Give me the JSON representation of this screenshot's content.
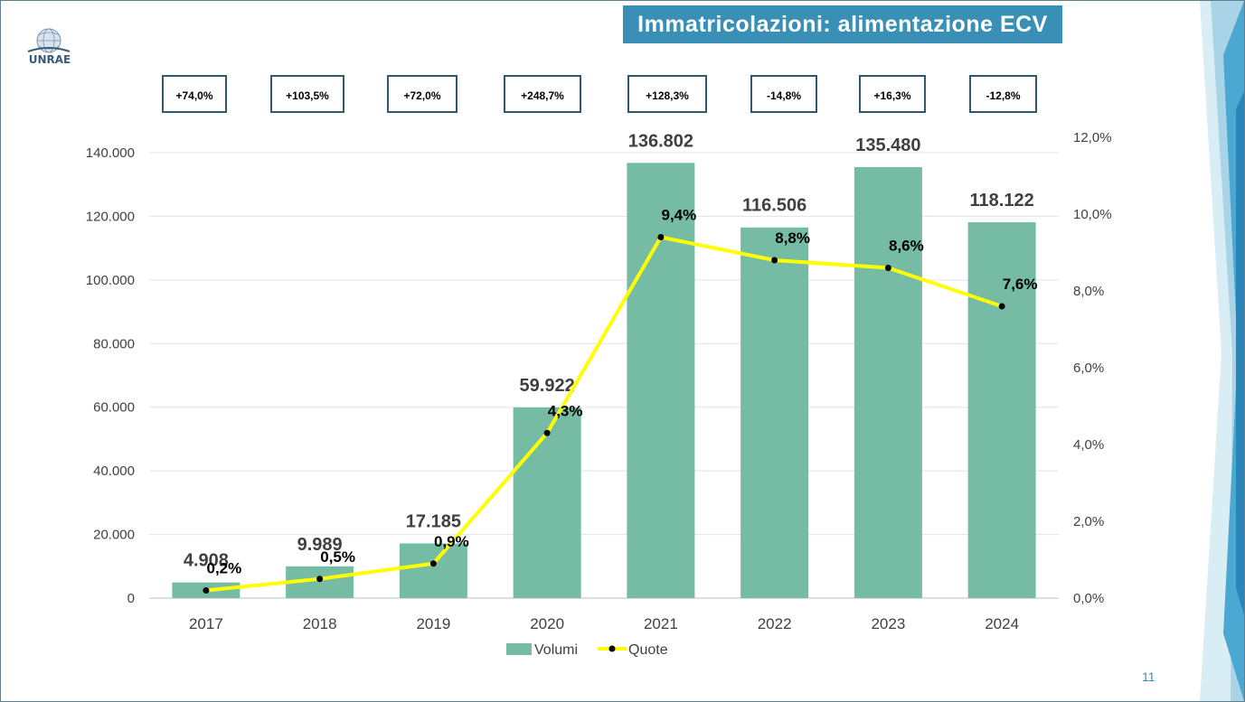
{
  "slide": {
    "title": "Immatricolazioni: alimentazione ECV",
    "logo_text": "UNRAE",
    "page_number": "11"
  },
  "growth_boxes": [
    "+74,0%",
    "+103,5%",
    "+72,0%",
    "+248,7%",
    "+128,3%",
    "-14,8%",
    "+16,3%",
    "-12,8%"
  ],
  "chart_data": {
    "type": "bar",
    "categories": [
      "2017",
      "2018",
      "2019",
      "2020",
      "2021",
      "2022",
      "2023",
      "2024"
    ],
    "series": [
      {
        "name": "Volumi",
        "kind": "bar",
        "axis": "left",
        "color": "#76bca5",
        "values": [
          4908,
          9989,
          17185,
          59922,
          136802,
          116506,
          135480,
          118122
        ],
        "labels": [
          "4.908",
          "9.989",
          "17.185",
          "59.922",
          "136.802",
          "116.506",
          "135.480",
          "118.122"
        ]
      },
      {
        "name": "Quote",
        "kind": "line",
        "axis": "right",
        "color": "#ffff00",
        "values": [
          0.2,
          0.5,
          0.9,
          4.3,
          9.4,
          8.8,
          8.6,
          7.6
        ],
        "labels": [
          "0,2%",
          "0,5%",
          "0,9%",
          "4,3%",
          "9,4%",
          "8,8%",
          "8,6%",
          "7,6%"
        ]
      }
    ],
    "left_axis": {
      "ylim": [
        0,
        140000
      ],
      "ticks": [
        0,
        20000,
        40000,
        60000,
        80000,
        100000,
        120000,
        140000
      ],
      "tick_labels": [
        "0",
        "20.000",
        "40.000",
        "60.000",
        "80.000",
        "100.000",
        "120.000",
        "140.000"
      ]
    },
    "right_axis": {
      "ylim": [
        0,
        12
      ],
      "ticks": [
        0,
        2,
        4,
        6,
        8,
        10,
        12
      ],
      "tick_labels": [
        "0,0%",
        "2,0%",
        "4,0%",
        "6,0%",
        "8,0%",
        "10,0%",
        "12,0%"
      ]
    },
    "grid": true,
    "legend_position": "bottom"
  }
}
